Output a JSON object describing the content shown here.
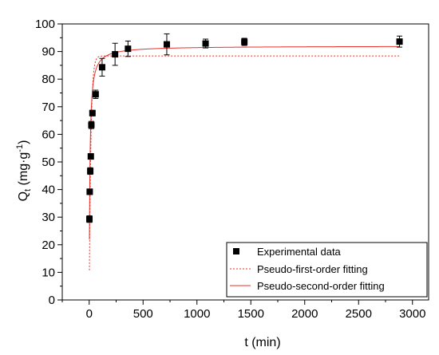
{
  "chart_data": {
    "type": "scatter",
    "title": "",
    "xlabel": "t (min)",
    "ylabel": {
      "main": "Q",
      "sub": "t",
      "unit_open": " (mg·g",
      "sup": "-1",
      "unit_close": ")"
    },
    "xlim": [
      -250,
      3150
    ],
    "ylim": [
      0,
      100
    ],
    "x_ticks": [
      0,
      500,
      1000,
      1500,
      2000,
      2500,
      3000
    ],
    "y_ticks": [
      0,
      10,
      20,
      30,
      40,
      50,
      60,
      70,
      80,
      90,
      100
    ],
    "legend": {
      "position": "bottom-right",
      "entries": [
        "Experimental data",
        "Pseudo-first-order fitting",
        "Pseudo-second-order fitting"
      ]
    },
    "series": [
      {
        "name": "Experimental data",
        "kind": "scatter",
        "color": "#000000",
        "points": [
          {
            "x": 2,
            "y": 29.3,
            "err": 1.2
          },
          {
            "x": 5,
            "y": 39.2,
            "err": 1.0
          },
          {
            "x": 10,
            "y": 46.7,
            "err": 1.2
          },
          {
            "x": 15,
            "y": 52.0,
            "err": 1.0
          },
          {
            "x": 20,
            "y": 63.4,
            "err": 1.3
          },
          {
            "x": 30,
            "y": 67.7,
            "err": 1.0
          },
          {
            "x": 60,
            "y": 74.5,
            "err": 1.5
          },
          {
            "x": 120,
            "y": 84.3,
            "err": 3.2
          },
          {
            "x": 240,
            "y": 89.0,
            "err": 4.0
          },
          {
            "x": 360,
            "y": 91.0,
            "err": 2.8
          },
          {
            "x": 720,
            "y": 92.6,
            "err": 3.8
          },
          {
            "x": 1080,
            "y": 92.9,
            "err": 1.6
          },
          {
            "x": 1440,
            "y": 93.5,
            "err": 1.3
          },
          {
            "x": 2880,
            "y": 93.6,
            "err": 2.0
          }
        ]
      },
      {
        "name": "Pseudo-first-order fitting",
        "kind": "line",
        "color": "#e8302a",
        "dashed": true,
        "qe": 88.4,
        "k": 0.065
      },
      {
        "name": "Pseudo-second-order fitting",
        "kind": "line",
        "color": "#e8302a",
        "dashed": false,
        "qe": 92.0,
        "k": 0.0017
      }
    ]
  }
}
